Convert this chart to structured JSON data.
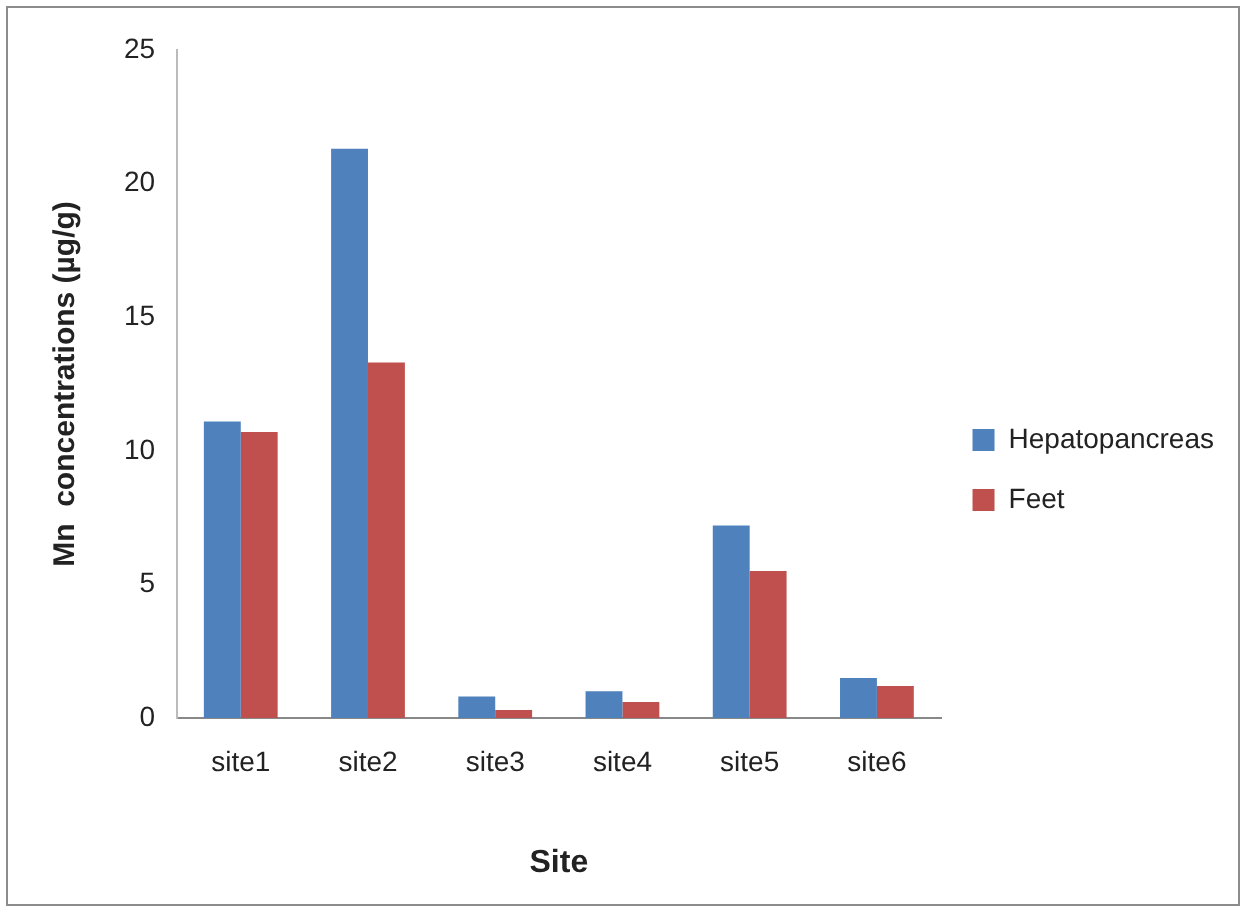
{
  "chart_data": {
    "type": "bar",
    "xlabel": "Site",
    "ylabel": "Mn  concentrations (µg/g)",
    "categories": [
      "site1",
      "site2",
      "site3",
      "site4",
      "site5",
      "site6"
    ],
    "series": [
      {
        "name": "Hepatopancreas",
        "color": "#4f81bd",
        "values": [
          11.1,
          21.3,
          0.8,
          1.0,
          7.2,
          1.5
        ]
      },
      {
        "name": "Feet",
        "color": "#c0504d",
        "values": [
          10.7,
          13.3,
          0.3,
          0.6,
          5.5,
          1.2
        ]
      }
    ],
    "ylim": [
      0,
      25
    ],
    "yticks": [
      0,
      5,
      10,
      15,
      20,
      25
    ],
    "grid": false,
    "legend": "right"
  }
}
